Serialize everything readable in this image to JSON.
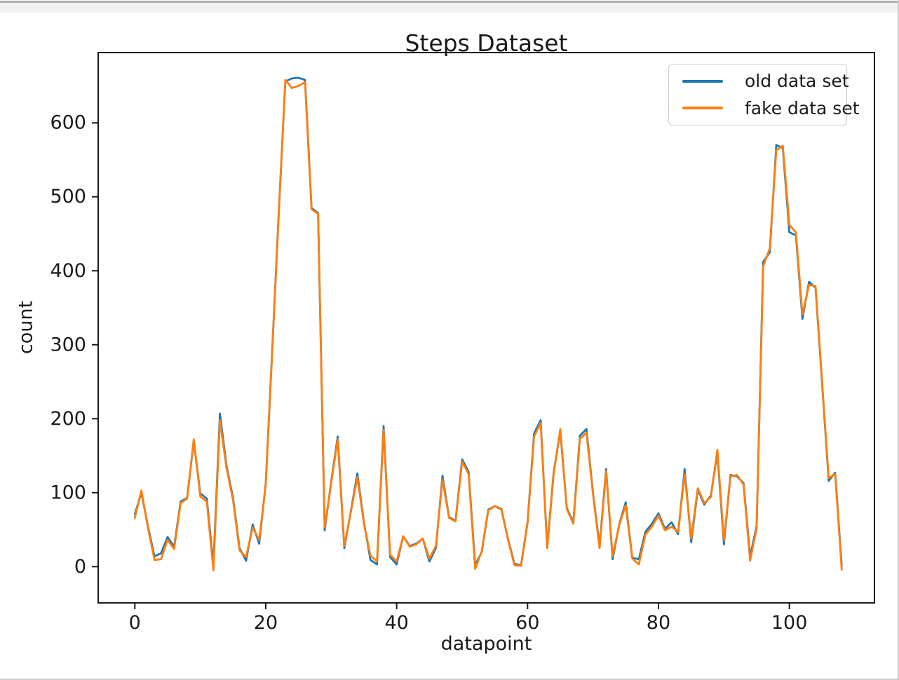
{
  "chart_data": {
    "type": "line",
    "title": "Steps Dataset",
    "xlabel": "datapoint",
    "ylabel": "count",
    "n_points": 109,
    "x_values_are_indices": true,
    "xlim": [
      -5.6,
      113.0
    ],
    "ylim": [
      -49,
      695
    ],
    "xticks": [
      0,
      20,
      40,
      60,
      80,
      100
    ],
    "yticks": [
      0,
      100,
      200,
      300,
      400,
      500,
      600
    ],
    "grid": false,
    "legend_position": "upper right",
    "axis_color": "#1a1a1a",
    "series": [
      {
        "name": "old data set",
        "color": "#1f77b4",
        "values": [
          71,
          100,
          55,
          14,
          18,
          40,
          27,
          88,
          93,
          170,
          99,
          92,
          2,
          207,
          137,
          93,
          25,
          8,
          57,
          31,
          112,
          295,
          480,
          656,
          660,
          661,
          658,
          485,
          478,
          49,
          115,
          176,
          25,
          75,
          126,
          60,
          9,
          3,
          190,
          13,
          3,
          41,
          28,
          31,
          38,
          7,
          25,
          123,
          67,
          62,
          145,
          128,
          2,
          20,
          77,
          82,
          78,
          38,
          4,
          2,
          60,
          180,
          198,
          26,
          128,
          183,
          79,
          60,
          177,
          186,
          100,
          28,
          132,
          10,
          57,
          87,
          12,
          10,
          47,
          58,
          72,
          51,
          60,
          44,
          132,
          33,
          104,
          84,
          96,
          154,
          30,
          124,
          122,
          113,
          14,
          55,
          412,
          425,
          570,
          566,
          452,
          448,
          335,
          385,
          377,
          248,
          116,
          127,
          1
        ]
      },
      {
        "name": "fake data set",
        "color": "#ff7f0e",
        "values": [
          66,
          103,
          53,
          9,
          10,
          36,
          24,
          86,
          92,
          172,
          95,
          88,
          -5,
          198,
          134,
          90,
          22,
          13,
          53,
          36,
          110,
          293,
          478,
          658,
          647,
          650,
          655,
          483,
          477,
          53,
          113,
          172,
          28,
          74,
          121,
          58,
          15,
          7,
          185,
          16,
          7,
          41,
          27,
          30,
          38,
          11,
          28,
          118,
          66,
          61,
          142,
          125,
          -3,
          21,
          76,
          82,
          77,
          37,
          2,
          1,
          59,
          176,
          194,
          25,
          126,
          186,
          78,
          58,
          173,
          181,
          98,
          25,
          129,
          14,
          56,
          83,
          11,
          3,
          43,
          54,
          69,
          49,
          54,
          47,
          125,
          38,
          106,
          86,
          94,
          158,
          35,
          122,
          124,
          111,
          8,
          52,
          406,
          430,
          563,
          569,
          462,
          452,
          341,
          381,
          379,
          250,
          120,
          125,
          -4
        ]
      }
    ]
  }
}
